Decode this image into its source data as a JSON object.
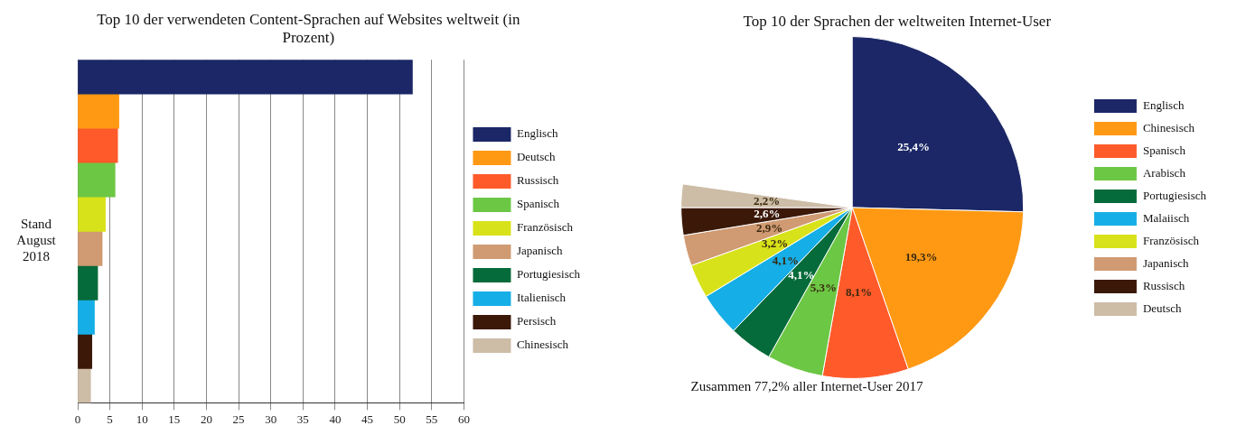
{
  "chart_data": [
    {
      "type": "bar",
      "orientation": "horizontal",
      "stacked": true,
      "title": "Top 10 der verwendeten Content-Sprachen auf Websites weltweit (in Prozent)",
      "ylabel": "Stand August 2018",
      "categories": [
        null,
        null,
        null,
        null,
        null,
        null,
        null,
        null,
        null,
        null
      ],
      "series": [
        {
          "name": "Englisch",
          "color": "#1b2766",
          "values": [
            52,
            null,
            null,
            null,
            null,
            null,
            null,
            null,
            null,
            null
          ]
        },
        {
          "name": "Deutsch",
          "color": "#ff9914",
          "values": [
            null,
            6.4,
            null,
            null,
            null,
            null,
            null,
            null,
            null,
            null
          ]
        },
        {
          "name": "Russisch",
          "color": "#ff5a2a",
          "values": [
            null,
            null,
            6.2,
            null,
            null,
            null,
            null,
            null,
            null,
            null
          ]
        },
        {
          "name": "Spanisch",
          "color": "#6cc744",
          "values": [
            null,
            null,
            null,
            5.8,
            null,
            null,
            null,
            null,
            null,
            null
          ]
        },
        {
          "name": "Französisch",
          "color": "#d8e21a",
          "values": [
            null,
            null,
            null,
            null,
            4.3,
            null,
            null,
            null,
            null,
            null
          ]
        },
        {
          "name": "Japanisch",
          "color": "#d09a72",
          "values": [
            null,
            null,
            null,
            null,
            null,
            3.8,
            null,
            null,
            null,
            null
          ]
        },
        {
          "name": "Portugiesisch",
          "color": "#066b3a",
          "values": [
            null,
            null,
            null,
            null,
            null,
            null,
            3.1,
            null,
            null,
            null
          ]
        },
        {
          "name": "Italienisch",
          "color": "#16aee6",
          "values": [
            null,
            null,
            null,
            null,
            null,
            null,
            null,
            2.6,
            null,
            null
          ]
        },
        {
          "name": "Persisch",
          "color": "#3b1808",
          "values": [
            null,
            null,
            null,
            null,
            null,
            null,
            null,
            null,
            2.2,
            null
          ]
        },
        {
          "name": "Chinesisch",
          "color": "#cdbca6",
          "values": [
            null,
            null,
            null,
            null,
            null,
            null,
            null,
            null,
            null,
            2.0
          ]
        }
      ],
      "xlim": [
        0,
        60
      ],
      "xticks": [
        0,
        5,
        10,
        15,
        20,
        25,
        30,
        35,
        40,
        45,
        50,
        55,
        60
      ],
      "grid": "x",
      "legend": "right"
    },
    {
      "type": "pie",
      "title": "Top 10 der Sprachen der weltweiten Internet-User",
      "categories": [
        "Englisch",
        "Chinesisch",
        "Spanisch",
        "Arabisch",
        "Portugiesisch",
        "Malaiisch",
        "Französisch",
        "Japanisch",
        "Russisch",
        "Deutsch"
      ],
      "values": [
        25.4,
        19.3,
        8.1,
        5.3,
        4.1,
        4.1,
        3.2,
        2.9,
        2.6,
        2.2
      ],
      "value_labels": [
        "25,4%",
        "19,3%",
        "8,1%",
        "5,3%",
        "4,1%",
        "4,1%",
        "3,2%",
        "2,9%",
        "2,6%",
        "2,2%"
      ],
      "colors": [
        "#1b2766",
        "#ff9914",
        "#ff5a2a",
        "#6cc744",
        "#066b3a",
        "#16aee6",
        "#d8e21a",
        "#d09a72",
        "#3b1808",
        "#cdbca6"
      ],
      "legend": "right",
      "annotations": [
        "Zusammen 77,2% aller Internet-User 2017"
      ]
    }
  ]
}
